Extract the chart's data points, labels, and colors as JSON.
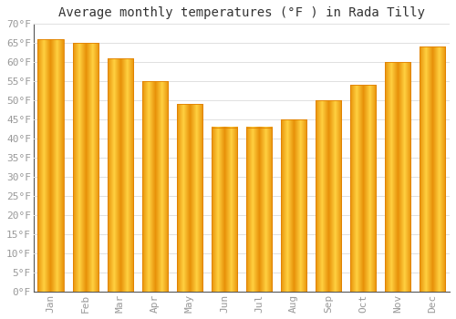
{
  "title": "Average monthly temperatures (°F ) in Rada Tilly",
  "months": [
    "Jan",
    "Feb",
    "Mar",
    "Apr",
    "May",
    "Jun",
    "Jul",
    "Aug",
    "Sep",
    "Oct",
    "Nov",
    "Dec"
  ],
  "values": [
    66,
    65,
    61,
    55,
    49,
    43,
    43,
    45,
    50,
    54,
    60,
    64
  ],
  "bar_color_main": "#FFB300",
  "bar_color_light": "#FFD966",
  "bar_edge_color": "#E08000",
  "background_color": "#FFFFFF",
  "grid_color": "#E0E0E0",
  "ylim": [
    0,
    70
  ],
  "yticks": [
    0,
    5,
    10,
    15,
    20,
    25,
    30,
    35,
    40,
    45,
    50,
    55,
    60,
    65,
    70
  ],
  "ytick_labels": [
    "0°F",
    "5°F",
    "10°F",
    "15°F",
    "20°F",
    "25°F",
    "30°F",
    "35°F",
    "40°F",
    "45°F",
    "50°F",
    "55°F",
    "60°F",
    "65°F",
    "70°F"
  ],
  "title_fontsize": 10,
  "tick_fontsize": 8,
  "font_family": "monospace",
  "tick_color": "#999999",
  "spine_color": "#555555"
}
